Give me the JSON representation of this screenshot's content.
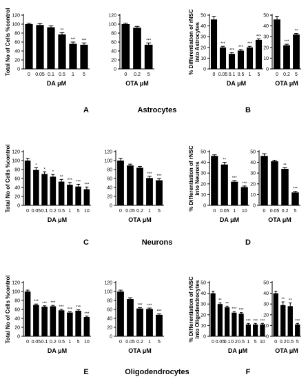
{
  "figure": {
    "row_titles": [
      "Astrocytes",
      "Neurons",
      "Oligodendrocytes"
    ],
    "panel_letters": [
      "A",
      "B",
      "C",
      "D",
      "E",
      "F"
    ]
  },
  "colors": {
    "bar": "#000000",
    "axis": "#000000",
    "background": "#ffffff"
  },
  "chart_data": [
    {
      "id": "A1",
      "type": "bar",
      "ylabel": "Total No of Cells %control",
      "xlabel": "DA μM",
      "categories": [
        "0",
        "0.05",
        "0.1",
        "0.5",
        "1",
        "5"
      ],
      "values": [
        100,
        98,
        93,
        77,
        56,
        54
      ],
      "errors": [
        2,
        3,
        3,
        4,
        4,
        4
      ],
      "sig": [
        "",
        "",
        "",
        "**",
        "***",
        "***"
      ],
      "ylim": [
        0,
        120
      ],
      "yticks": [
        "0",
        "20",
        "40",
        "60",
        "80",
        "100",
        "120"
      ]
    },
    {
      "id": "A2",
      "type": "bar",
      "ylabel": "",
      "xlabel": "OTA μM",
      "categories": [
        "0",
        "0.2",
        "5"
      ],
      "values": [
        100,
        92,
        54
      ],
      "errors": [
        2,
        3,
        4
      ],
      "sig": [
        "",
        "",
        "***"
      ],
      "ylim": [
        0,
        120
      ],
      "yticks": [
        "0",
        "20",
        "40",
        "60",
        "80",
        "100",
        "120"
      ]
    },
    {
      "id": "B1",
      "type": "bar",
      "ylabel": "% Differentiation of rNSC into Astrocytes",
      "xlabel": "DA μM",
      "categories": [
        "0",
        "0.05",
        "0.1",
        "0.5",
        "1",
        "5"
      ],
      "values": [
        46,
        20,
        14,
        17,
        20,
        27
      ],
      "errors": [
        3,
        1,
        1,
        1,
        1,
        1
      ],
      "sig": [
        "",
        "***",
        "***",
        "***",
        "***",
        "***"
      ],
      "ylim": [
        0,
        50
      ],
      "yticks": [
        "0",
        "10",
        "20",
        "30",
        "40",
        "50"
      ]
    },
    {
      "id": "B2",
      "type": "bar",
      "ylabel": "",
      "xlabel": "OTA μM",
      "categories": [
        "0",
        "0.2",
        "5"
      ],
      "values": [
        46,
        22,
        32
      ],
      "errors": [
        3,
        1,
        1
      ],
      "sig": [
        "",
        "***",
        "**"
      ],
      "ylim": [
        0,
        50
      ],
      "yticks": [
        "0",
        "10",
        "20",
        "30",
        "40",
        "50"
      ]
    },
    {
      "id": "C1",
      "type": "bar",
      "ylabel": "Total No of Cells %control",
      "xlabel": "DA μM",
      "categories": [
        "0",
        "0.05",
        "0.1",
        "0.2",
        "0.5",
        "1",
        "5",
        "10"
      ],
      "values": [
        100,
        79,
        70,
        64,
        53,
        46,
        42,
        36
      ],
      "errors": [
        5,
        5,
        5,
        5,
        5,
        5,
        5,
        5
      ],
      "sig": [
        "",
        "*",
        "*",
        "*",
        "**",
        "***",
        "***",
        "***"
      ],
      "ylim": [
        0,
        120
      ],
      "yticks": [
        "0",
        "20",
        "40",
        "60",
        "80",
        "100",
        "120"
      ]
    },
    {
      "id": "C2",
      "type": "bar",
      "ylabel": "",
      "xlabel": "OTA μM",
      "categories": [
        "0",
        "0.05",
        "0.2",
        "1",
        "5"
      ],
      "values": [
        100,
        89,
        84,
        61,
        56
      ],
      "errors": [
        5,
        3,
        3,
        4,
        4
      ],
      "sig": [
        "",
        "",
        "",
        "***",
        "***"
      ],
      "ylim": [
        0,
        120
      ],
      "yticks": [
        "0",
        "20",
        "40",
        "60",
        "80",
        "100",
        "120"
      ]
    },
    {
      "id": "D1",
      "type": "bar",
      "ylabel": "% Differentiation of rNSC into Neurons",
      "xlabel": "DA μM",
      "categories": [
        "0",
        "0.05",
        "1",
        "10"
      ],
      "values": [
        46,
        38,
        22,
        17
      ],
      "errors": [
        1,
        2,
        1,
        1
      ],
      "sig": [
        "",
        "**",
        "***",
        "***"
      ],
      "ylim": [
        0,
        50
      ],
      "yticks": [
        "0",
        "10",
        "20",
        "30",
        "40",
        "50"
      ]
    },
    {
      "id": "D2",
      "type": "bar",
      "ylabel": "",
      "xlabel": "OTA μM",
      "categories": [
        "0",
        "0.05",
        "0.2",
        "5"
      ],
      "values": [
        46,
        41,
        34,
        12
      ],
      "errors": [
        2,
        1,
        1,
        1
      ],
      "sig": [
        "",
        "",
        "**",
        "***"
      ],
      "ylim": [
        0,
        50
      ],
      "yticks": [
        "0",
        "10",
        "20",
        "30",
        "40",
        "50"
      ]
    },
    {
      "id": "E1",
      "type": "bar",
      "ylabel": "Total No of Cells %control",
      "xlabel": "DA μM",
      "categories": [
        "0",
        "0.05",
        "0.1",
        "0.2",
        "0.5",
        "1",
        "5",
        "10"
      ],
      "values": [
        100,
        70,
        66,
        67,
        58,
        53,
        57,
        43
      ],
      "errors": [
        3,
        2,
        2,
        2,
        2,
        2,
        2,
        2
      ],
      "sig": [
        "",
        "***",
        "***",
        "***",
        "***",
        "***",
        "***",
        "***"
      ],
      "ylim": [
        0,
        120
      ],
      "yticks": [
        "0",
        "20",
        "40",
        "60",
        "80",
        "100",
        "120"
      ]
    },
    {
      "id": "E2",
      "type": "bar",
      "ylabel": "",
      "xlabel": "OTA μM",
      "categories": [
        "0",
        "0.05",
        "0.2",
        "1",
        "5"
      ],
      "values": [
        100,
        83,
        62,
        61,
        48
      ],
      "errors": [
        3,
        3,
        2,
        2,
        2
      ],
      "sig": [
        "",
        "",
        "***",
        "***",
        "***"
      ],
      "ylim": [
        0,
        120
      ],
      "yticks": [
        "0",
        "20",
        "40",
        "60",
        "80",
        "100",
        "120"
      ]
    },
    {
      "id": "F1",
      "type": "bar",
      "ylabel": "% Differentiation of rNSC into Oligodendrocytes",
      "xlabel": "DA μM",
      "categories": [
        "0",
        "0.05",
        "0.1",
        "0.2",
        "0.5",
        "1",
        "5",
        "10"
      ],
      "values": [
        40,
        30,
        27,
        22,
        21,
        11,
        11,
        11
      ],
      "errors": [
        2,
        1,
        1,
        1,
        1,
        1,
        1,
        1
      ],
      "sig": [
        "",
        "**",
        "**",
        "***",
        "***",
        "***",
        "***",
        "***"
      ],
      "ylim": [
        0,
        50
      ],
      "yticks": [
        "0",
        "10",
        "20",
        "30",
        "40",
        "50"
      ]
    },
    {
      "id": "F2",
      "type": "bar",
      "ylabel": "",
      "xlabel": "OTA μM",
      "categories": [
        "0",
        "0.2",
        "0.5",
        "5"
      ],
      "values": [
        40,
        29,
        28,
        11
      ],
      "errors": [
        2,
        3,
        3,
        1
      ],
      "sig": [
        "",
        "**",
        "**",
        "***"
      ],
      "ylim": [
        0,
        50
      ],
      "yticks": [
        "0",
        "10",
        "20",
        "30",
        "40",
        "50"
      ]
    }
  ]
}
